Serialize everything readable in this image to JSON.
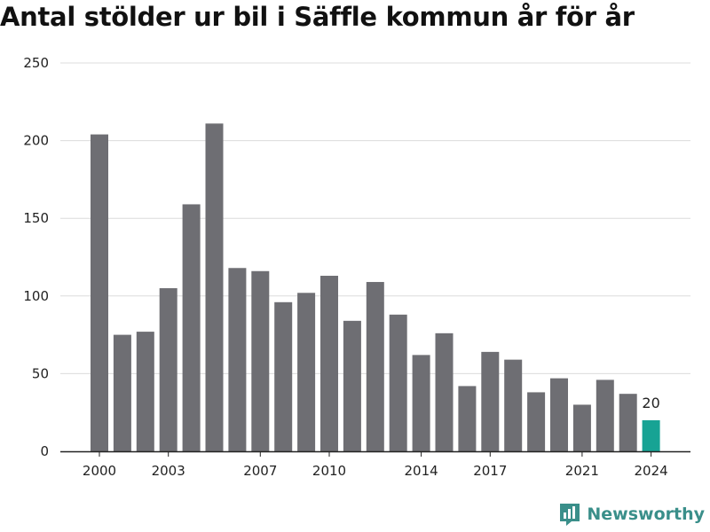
{
  "chart_data": {
    "type": "bar",
    "title": "Antal stölder ur bil i Säffle kommun år för år",
    "xlabel": "",
    "ylabel": "",
    "categories": [
      "2000",
      "2001",
      "2002",
      "2003",
      "2004",
      "2005",
      "2006",
      "2007",
      "2008",
      "2009",
      "2010",
      "2011",
      "2012",
      "2013",
      "2014",
      "2015",
      "2016",
      "2017",
      "2018",
      "2019",
      "2020",
      "2021",
      "2022",
      "2023",
      "2024"
    ],
    "x_tick_labels": [
      "2000",
      "2003",
      "2007",
      "2010",
      "2014",
      "2017",
      "2021",
      "2024"
    ],
    "values": [
      204,
      75,
      77,
      105,
      159,
      211,
      118,
      116,
      96,
      102,
      113,
      84,
      109,
      88,
      62,
      76,
      42,
      64,
      59,
      38,
      47,
      30,
      46,
      37,
      20
    ],
    "ylim": [
      0,
      250
    ],
    "y_ticks": [
      0,
      50,
      100,
      150,
      200,
      250
    ],
    "grid": true,
    "bar_color": "#6e6e73",
    "highlight_color": "#17a394",
    "highlight_category": "2024",
    "data_labels": [
      {
        "category": "2024",
        "text": "20"
      }
    ]
  },
  "brand": {
    "name": "Newsworthy",
    "icon": "bar-chart-bubble-icon",
    "color": "#3a8f8a"
  }
}
